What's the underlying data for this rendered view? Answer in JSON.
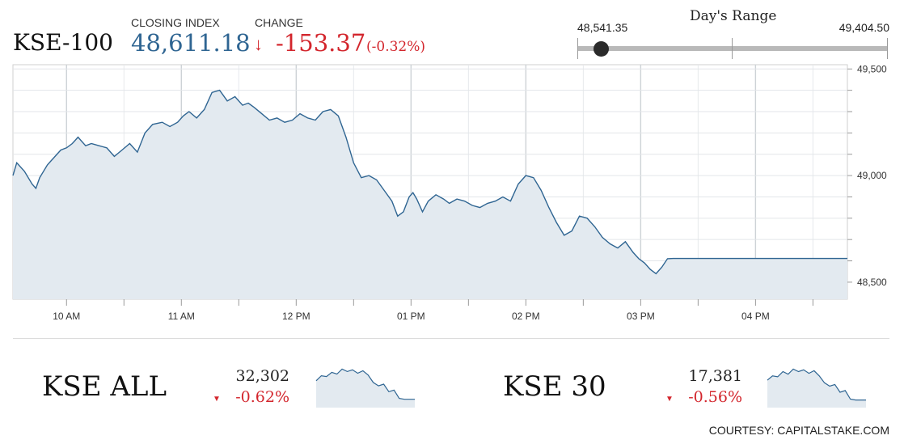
{
  "header": {
    "index_name": "KSE-100",
    "closing_label": "CLOSING INDEX",
    "closing_value": "48,611.18",
    "change_label": "CHANGE",
    "change_value": "-153.37",
    "change_percent": "(-0.32%)",
    "change_icon": "down-arrow-icon",
    "colors": {
      "value": "#2f6592",
      "negative": "#d3262d"
    }
  },
  "day_range": {
    "title": "Day's Range",
    "low": "48,541.35",
    "high": "49,404.50",
    "current_position_fraction": 0.08
  },
  "chart_data": [
    {
      "type": "area",
      "title": "",
      "x_unit": "time of day",
      "x_tick_labels": [
        "10 AM",
        "11 AM",
        "12 PM",
        "01 PM",
        "02 PM",
        "03 PM",
        "04 PM"
      ],
      "y_tick_labels": [
        "48,500",
        "49,000",
        "49,500"
      ],
      "xlim": [
        "09:32",
        "16:48"
      ],
      "ylim": [
        48420,
        49520
      ],
      "y_axis_position": "right",
      "grid": true,
      "colors": {
        "line": "#2f6592",
        "fill": "#e3eaf0"
      },
      "series": [
        {
          "x": [
            "09:32",
            "09:34",
            "09:38",
            "09:42",
            "09:44",
            "09:46",
            "09:50",
            "09:53",
            "09:57",
            "10:00",
            "10:03",
            "10:06",
            "10:10",
            "10:13",
            "10:17",
            "10:21",
            "10:25",
            "10:29",
            "10:33",
            "10:37",
            "10:41",
            "10:45",
            "10:50",
            "10:54",
            "10:58",
            "11:01",
            "11:04",
            "11:08",
            "11:12",
            "11:16",
            "11:20",
            "11:24",
            "11:28",
            "11:32",
            "11:35",
            "11:38",
            "11:42",
            "11:46",
            "11:50",
            "11:54",
            "11:58",
            "12:02",
            "12:06",
            "12:10",
            "12:14",
            "12:18",
            "12:22",
            "12:26",
            "12:30",
            "12:34",
            "12:38",
            "12:42",
            "12:46",
            "12:50",
            "12:53",
            "12:56",
            "12:59",
            "13:01",
            "13:03",
            "13:06",
            "13:09",
            "13:13",
            "13:17",
            "13:20",
            "13:24",
            "13:28",
            "13:32",
            "13:36",
            "13:40",
            "13:44",
            "13:48",
            "13:52",
            "13:56",
            "14:00",
            "14:04",
            "14:08",
            "14:12",
            "14:16",
            "14:20",
            "14:24",
            "14:28",
            "14:32",
            "14:36",
            "14:40",
            "14:44",
            "14:48",
            "14:52",
            "14:56",
            "14:59",
            "15:02",
            "15:05",
            "15:08",
            "15:11",
            "15:14",
            "15:17",
            "15:20",
            "15:23",
            "15:26",
            "15:29",
            "15:31",
            "15:33",
            "15:35",
            "15:38",
            "15:42",
            "15:48",
            "16:48"
          ],
          "y": [
            49000,
            49060,
            49020,
            48960,
            48940,
            48990,
            49050,
            49080,
            49120,
            49130,
            49150,
            49180,
            49140,
            49150,
            49140,
            49130,
            49090,
            49120,
            49150,
            49110,
            49200,
            49240,
            49250,
            49230,
            49250,
            49280,
            49300,
            49270,
            49310,
            49390,
            49400,
            49350,
            49370,
            49330,
            49340,
            49320,
            49290,
            49260,
            49270,
            49250,
            49260,
            49290,
            49270,
            49260,
            49300,
            49310,
            49280,
            49180,
            49060,
            48990,
            49000,
            48980,
            48930,
            48880,
            48810,
            48830,
            48900,
            48920,
            48890,
            48830,
            48880,
            48910,
            48890,
            48870,
            48890,
            48880,
            48860,
            48850,
            48870,
            48880,
            48900,
            48880,
            48960,
            49000,
            48990,
            48930,
            48850,
            48780,
            48720,
            48740,
            48810,
            48800,
            48760,
            48710,
            48680,
            48660,
            48690,
            48640,
            48610,
            48590,
            48560,
            48540,
            48570,
            48610,
            48611,
            48611,
            48611,
            48611,
            48611,
            48611,
            48611,
            48611,
            48611,
            48611,
            48611,
            48611
          ],
          "y_note": "values estimated from plot; trailing flat segment is the closing level"
        }
      ]
    },
    {
      "type": "area",
      "title": "KSE ALL",
      "x_tick_labels": [],
      "y_tick_labels": [],
      "series": [
        {
          "y": [
            3,
            3.6,
            3.5,
            4,
            3.8,
            4.4,
            4.1,
            4.3,
            3.9,
            4.2,
            3.7,
            2.8,
            2.4,
            2.6,
            1.7,
            1.9,
            0.9,
            0.8,
            0.8,
            0.8
          ]
        }
      ],
      "value": "32,302",
      "change": "-0.62%"
    },
    {
      "type": "area",
      "title": "KSE 30",
      "x_tick_labels": [],
      "y_tick_labels": [],
      "series": [
        {
          "y": [
            3,
            3.5,
            3.4,
            4,
            3.7,
            4.3,
            4,
            4.2,
            3.8,
            4.1,
            3.5,
            2.7,
            2.3,
            2.5,
            1.6,
            1.8,
            0.8,
            0.7,
            0.7,
            0.7
          ]
        }
      ],
      "value": "17,381",
      "change": "-0.56%"
    }
  ],
  "sub_indices": [
    {
      "name": "KSE ALL",
      "value": "32,302",
      "change": "-0.62%",
      "change_icon": "triangle-down-icon"
    },
    {
      "name": "KSE 30",
      "value": "17,381",
      "change": "-0.56%",
      "change_icon": "triangle-down-icon"
    }
  ],
  "footer": {
    "courtesy": "COURTESY: CAPITALSTAKE.COM"
  }
}
